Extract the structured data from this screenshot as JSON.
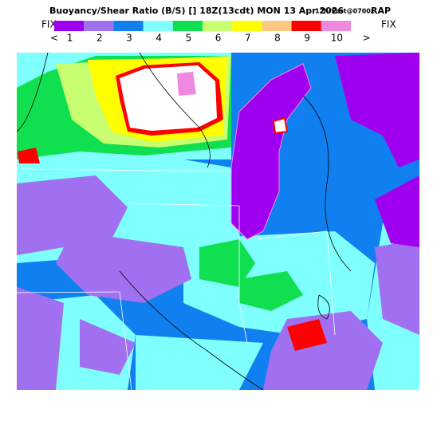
{
  "header": {
    "title": "Buoyancy/Shear Ratio (B/S) [] 18Z(13cdt) MON 13 Apr 2026",
    "forecast": "12hrFcst@0700z",
    "model": "RAP"
  },
  "legend": {
    "left": "FIX",
    "right": "FIX",
    "colors": [
      "#a000f0",
      "#a070f0",
      "#1080f0",
      "#80ffff",
      "#10e050",
      "#c8ff70",
      "#ffff00",
      "#ffc880",
      "#ff0000",
      "#f088e0"
    ],
    "labels": [
      "<",
      "1",
      "2",
      "3",
      "4",
      "5",
      "6",
      "7",
      "8",
      "9",
      "10",
      ">"
    ]
  }
}
